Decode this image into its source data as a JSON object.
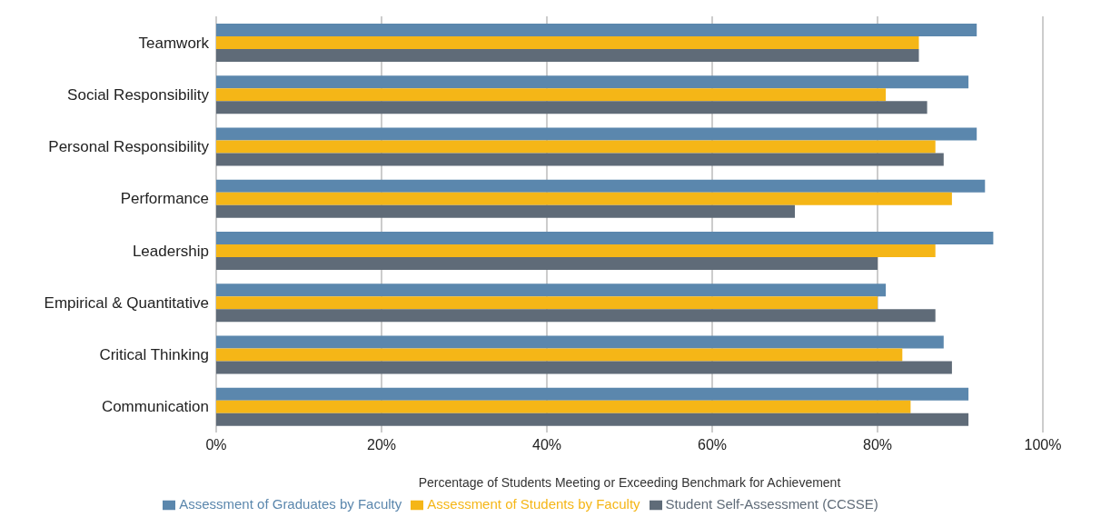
{
  "chart_data": {
    "type": "bar",
    "orientation": "horizontal",
    "xlabel": "Percentage of Students Meeting or Exceeding Benchmark for Achievement",
    "categories": [
      "Teamwork",
      "Social Responsibility",
      "Personal Responsibility",
      "Performance",
      "Leadership",
      "Empirical & Quantitative",
      "Critical Thinking",
      "Communication"
    ],
    "series": [
      {
        "name": "Assessment of Graduates by Faculty",
        "color": "#5b87ad",
        "values": [
          92,
          91,
          92,
          93,
          94,
          81,
          88,
          91
        ]
      },
      {
        "name": "Assessment of Students by Faculty",
        "color": "#f5b617",
        "values": [
          85,
          81,
          87,
          89,
          87,
          80,
          83,
          84
        ]
      },
      {
        "name": "Student Self-Assessment (CCSSE)",
        "color": "#5f6b78",
        "values": [
          85,
          86,
          88,
          70,
          80,
          87,
          89,
          91
        ]
      }
    ],
    "xlim": [
      0,
      100
    ],
    "xticks": [
      {
        "value": 0,
        "label": "0%"
      },
      {
        "value": 20,
        "label": "20%"
      },
      {
        "value": 40,
        "label": "40%"
      },
      {
        "value": 60,
        "label": "60%"
      },
      {
        "value": 80,
        "label": "80%"
      },
      {
        "value": 100,
        "label": "100%"
      }
    ],
    "grid": "x",
    "legend": "bottom"
  }
}
